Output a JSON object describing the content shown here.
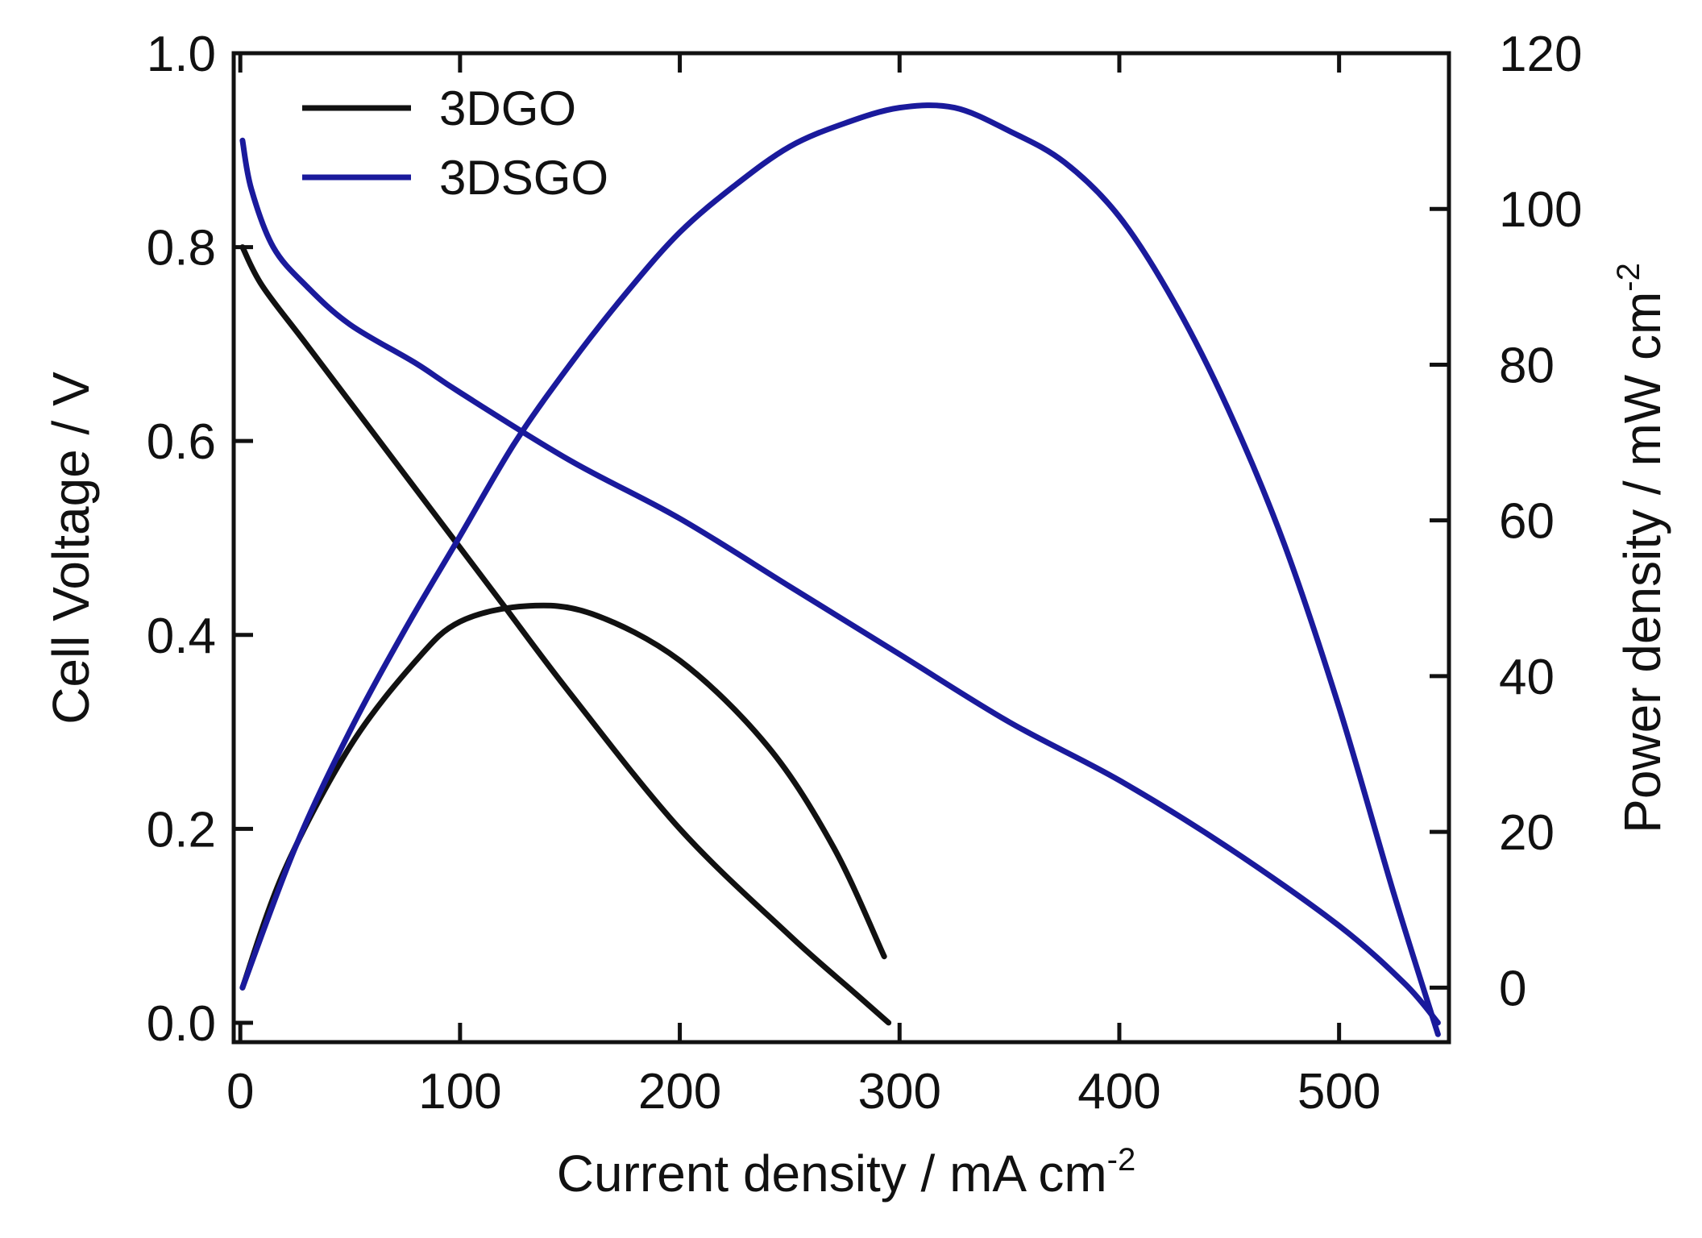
{
  "chart_data": {
    "type": "line",
    "title": "",
    "xlabel": "Current density / mA cm",
    "xlabel_sup": "-2",
    "ylabel_left": "Cell Voltage / V",
    "ylabel_right": "Power density  / mW cm",
    "ylabel_right_sup": "-2",
    "xlim": [
      -3,
      550
    ],
    "ylim_left": [
      -0.02,
      1.0
    ],
    "ylim_right": [
      -7,
      120
    ],
    "x_ticks": [
      0,
      100,
      200,
      300,
      400,
      500
    ],
    "y_left_ticks": [
      0.0,
      0.2,
      0.4,
      0.6,
      0.8,
      1.0
    ],
    "y_left_tick_labels": [
      "0.0",
      "0.2",
      "0.4",
      "0.6",
      "0.8",
      "1.0"
    ],
    "y_right_ticks": [
      0,
      20,
      40,
      60,
      80,
      100,
      120
    ],
    "legend_position": "top-left",
    "colors": {
      "3DGO": "#111111",
      "3DSGO": "#1a1a9c"
    },
    "legend": [
      "3DGO",
      "3DSGO"
    ],
    "series": [
      {
        "name": "3DGO",
        "kind": "voltage",
        "axis": "left",
        "x": [
          1,
          10,
          30,
          60,
          100,
          120,
          150,
          200,
          250,
          280,
          295
        ],
        "y": [
          0.8,
          0.76,
          0.7,
          0.61,
          0.49,
          0.43,
          0.34,
          0.2,
          0.09,
          0.03,
          0.0
        ]
      },
      {
        "name": "3DGO",
        "kind": "power",
        "axis": "right",
        "x": [
          1,
          20,
          50,
          80,
          100,
          130,
          160,
          200,
          240,
          270,
          293
        ],
        "y": [
          0,
          15,
          31,
          42,
          47,
          49,
          48,
          42,
          31,
          18,
          4
        ]
      },
      {
        "name": "3DSGO",
        "kind": "voltage",
        "axis": "right_unused",
        "x": [
          1,
          5,
          15,
          30,
          50,
          80,
          100,
          150,
          200,
          250,
          300,
          350,
          400,
          450,
          500,
          530,
          545
        ],
        "y": [
          0.91,
          0.86,
          0.8,
          0.76,
          0.72,
          0.68,
          0.65,
          0.58,
          0.52,
          0.45,
          0.38,
          0.31,
          0.25,
          0.18,
          0.1,
          0.04,
          0.0
        ]
      },
      {
        "name": "3DSGO",
        "kind": "power",
        "axis": "right",
        "x": [
          1,
          25,
          50,
          75,
          100,
          125,
          150,
          175,
          200,
          225,
          250,
          275,
          300,
          325,
          350,
          375,
          400,
          425,
          450,
          475,
          500,
          525,
          545
        ],
        "y": [
          0,
          18,
          33,
          46,
          58,
          70,
          80,
          89,
          97,
          103,
          108,
          111,
          113,
          113,
          110,
          106,
          99,
          88,
          74,
          57,
          36,
          12,
          -6
        ]
      }
    ]
  }
}
